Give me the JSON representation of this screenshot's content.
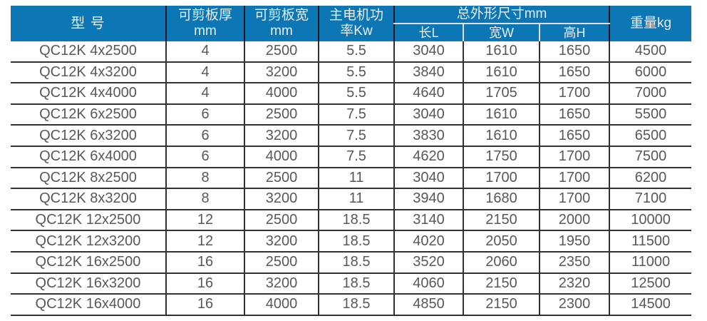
{
  "table": {
    "header": {
      "model": "型 号",
      "thickness_line1": "可剪板厚",
      "thickness_line2": "mm",
      "width_line1": "可剪板宽",
      "width_line2": "mm",
      "power_line1": "主电机功",
      "power_line2": "率Kw",
      "dimensions_group": "总外形尺寸mm",
      "dim_length": "长L",
      "dim_width": "宽W",
      "dim_height": "高H",
      "weight": "重量kg"
    },
    "rows": [
      [
        "QC12K 4x2500",
        "4",
        "2500",
        "5.5",
        "3040",
        "1610",
        "1650",
        "4500"
      ],
      [
        "QC12K 4x3200",
        "4",
        "3200",
        "5.5",
        "3840",
        "1610",
        "1650",
        "6000"
      ],
      [
        "QC12K 4x4000",
        "4",
        "4000",
        "5.5",
        "4640",
        "1705",
        "1700",
        "7000"
      ],
      [
        "QC12K 6x2500",
        "6",
        "2500",
        "7.5",
        "3040",
        "1610",
        "1650",
        "5500"
      ],
      [
        "QC12K 6x3200",
        "6",
        "3200",
        "7.5",
        "3830",
        "1610",
        "1650",
        "6500"
      ],
      [
        "QC12K 6x4000",
        "6",
        "4000",
        "7.5",
        "4620",
        "1750",
        "1700",
        "7500"
      ],
      [
        "QC12K 8x2500",
        "8",
        "2500",
        "11",
        "3040",
        "1700",
        "1700",
        "6200"
      ],
      [
        "QC12K 8x3200",
        "8",
        "3200",
        "11",
        "3940",
        "1680",
        "1700",
        "7100"
      ],
      [
        "QC12K 12x2500",
        "12",
        "2500",
        "18.5",
        "3140",
        "2150",
        "2000",
        "10000"
      ],
      [
        "QC12K 12x3200",
        "12",
        "3200",
        "18.5",
        "4020",
        "2050",
        "1950",
        "11500"
      ],
      [
        "QC12K 16x2500",
        "16",
        "2500",
        "18.5",
        "3520",
        "2060",
        "2350",
        "11000"
      ],
      [
        "QC12K 16x3200",
        "16",
        "3200",
        "18.5",
        "4060",
        "2150",
        "2320",
        "12500"
      ],
      [
        "QC12K 16x4000",
        "16",
        "4000",
        "18.5",
        "4850",
        "2150",
        "2300",
        "14500"
      ]
    ]
  },
  "colors": {
    "header_background": "#0d76b5",
    "header_text": "#ecedf0",
    "header_dark_divider": "#15151d",
    "header_light_divider": "#dfdfe3",
    "body_text": "#58585a",
    "grid_line": "#323236"
  }
}
